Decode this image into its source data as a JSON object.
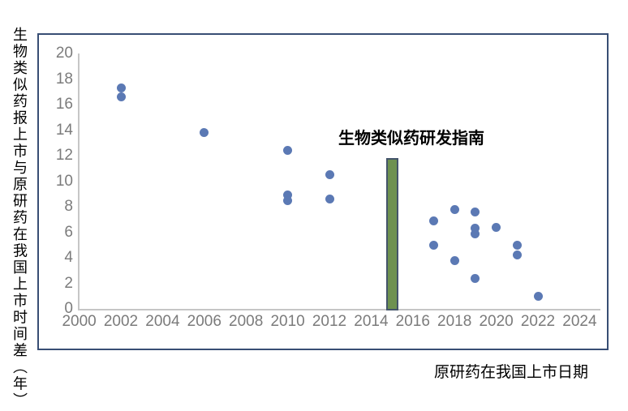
{
  "y_axis_title": "生物类似药报上市与原研药在我国上市时间差（年）",
  "x_axis_title": "原研药在我国上市日期",
  "annotation_label": "生物类似药研发指南",
  "colors": {
    "frame_border": "#384E74",
    "axis_line": "#C6C6C6",
    "tick_text": "#7B7B7B",
    "marker": "#5B79B4",
    "guideline_fill": "#6E9150",
    "guideline_border": "#44546A"
  },
  "chart_data": {
    "type": "scatter",
    "title": "",
    "xlabel": "原研药在我国上市日期",
    "ylabel": "生物类似药报上市与原研药在我国上市时间差（年）",
    "xlim": [
      2000,
      2024
    ],
    "ylim": [
      0,
      20
    ],
    "x_ticks": [
      2000,
      2002,
      2004,
      2006,
      2008,
      2010,
      2012,
      2014,
      2016,
      2018,
      2020,
      2022,
      2024
    ],
    "y_ticks": [
      0,
      2,
      4,
      6,
      8,
      10,
      12,
      14,
      16,
      18,
      20
    ],
    "grid": false,
    "legend_position": "none",
    "series": [
      {
        "name": "上市时间差",
        "marker_color": "#5B79B4",
        "points": [
          [
            2002,
            17.3
          ],
          [
            2002,
            16.6
          ],
          [
            2006,
            13.8
          ],
          [
            2010,
            12.4
          ],
          [
            2010,
            8.9
          ],
          [
            2010,
            8.5
          ],
          [
            2012,
            10.5
          ],
          [
            2012,
            8.6
          ],
          [
            2017,
            6.9
          ],
          [
            2017,
            5.0
          ],
          [
            2018,
            7.8
          ],
          [
            2018,
            3.8
          ],
          [
            2019,
            7.6
          ],
          [
            2019,
            6.3
          ],
          [
            2019,
            5.9
          ],
          [
            2019,
            2.4
          ],
          [
            2020,
            6.4
          ],
          [
            2021,
            5.0
          ],
          [
            2021,
            4.2
          ],
          [
            2022,
            1.0
          ]
        ]
      }
    ],
    "annotation": {
      "text": "生物类似药研发指南",
      "bar_x": 2015,
      "bar_top_value": 11.8,
      "bar_bottom_value": 0,
      "bar_fill": "#6E9150",
      "bar_border": "#44546A"
    }
  }
}
